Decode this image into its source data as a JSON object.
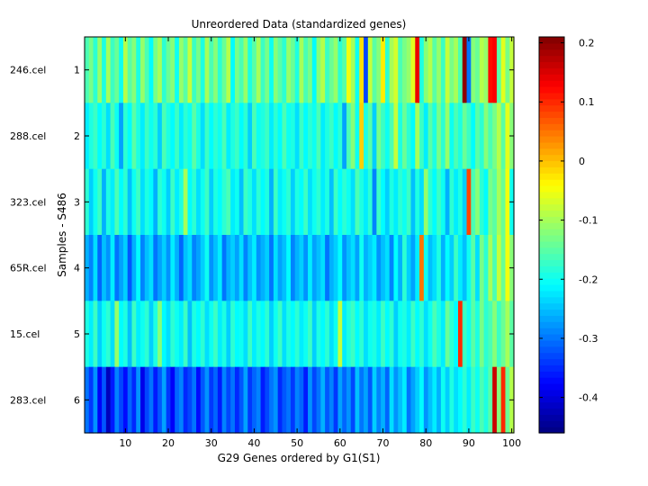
{
  "chart_data": {
    "type": "heatmap",
    "title": "Unreordered Data (standardized genes)",
    "xlabel": "G29 Genes ordered by G1(S1)",
    "ylabel": "Samples - S486",
    "x_ticks": [
      10,
      20,
      30,
      40,
      50,
      60,
      70,
      80,
      90,
      100
    ],
    "x_range": [
      0.5,
      100.5
    ],
    "rows": [
      {
        "index": "1",
        "sample": "246.cel"
      },
      {
        "index": "2",
        "sample": "288.cel"
      },
      {
        "index": "3",
        "sample": "323.cel"
      },
      {
        "index": "4",
        "sample": "65R.cel"
      },
      {
        "index": "5",
        "sample": "15.cel"
      },
      {
        "index": "6",
        "sample": "283.cel"
      }
    ],
    "n_columns": 100,
    "values": [
      [
        -0.16,
        -0.13,
        -0.18,
        -0.11,
        -0.19,
        -0.1,
        -0.17,
        -0.14,
        -0.2,
        -0.09,
        -0.15,
        -0.12,
        -0.19,
        -0.11,
        -0.16,
        -0.21,
        -0.13,
        -0.1,
        -0.18,
        -0.14,
        -0.12,
        -0.2,
        -0.11,
        -0.15,
        -0.08,
        -0.17,
        -0.13,
        -0.19,
        -0.1,
        -0.16,
        -0.12,
        -0.18,
        -0.14,
        -0.09,
        -0.21,
        -0.13,
        -0.16,
        -0.11,
        -0.19,
        -0.15,
        -0.1,
        -0.17,
        -0.13,
        -0.2,
        -0.12,
        -0.15,
        -0.18,
        -0.11,
        -0.14,
        -0.19,
        -0.1,
        -0.16,
        -0.13,
        -0.21,
        -0.12,
        -0.09,
        -0.17,
        -0.14,
        -0.11,
        -0.18,
        -0.15,
        -0.05,
        -0.1,
        -0.2,
        -0.02,
        -0.33,
        -0.08,
        -0.15,
        -0.12,
        -0.03,
        -0.18,
        -0.1,
        -0.07,
        -0.16,
        -0.13,
        -0.11,
        -0.06,
        0.14,
        -0.19,
        -0.12,
        -0.09,
        -0.15,
        -0.11,
        -0.17,
        -0.08,
        -0.13,
        -0.1,
        -0.16,
        0.2,
        -0.3,
        -0.12,
        -0.14,
        -0.09,
        -0.11,
        0.12,
        0.13,
        -0.15,
        -0.06,
        -0.13,
        -0.08
      ],
      [
        -0.22,
        -0.19,
        -0.17,
        -0.21,
        -0.18,
        -0.23,
        -0.16,
        -0.2,
        -0.27,
        -0.18,
        -0.21,
        -0.15,
        -0.19,
        -0.22,
        -0.17,
        -0.2,
        -0.18,
        -0.24,
        -0.16,
        -0.19,
        -0.21,
        -0.17,
        -0.22,
        -0.18,
        -0.2,
        -0.15,
        -0.19,
        -0.23,
        -0.17,
        -0.21,
        -0.18,
        -0.2,
        -0.16,
        -0.22,
        -0.19,
        -0.17,
        -0.21,
        -0.18,
        -0.24,
        -0.16,
        -0.2,
        -0.19,
        -0.17,
        -0.22,
        -0.18,
        -0.21,
        -0.16,
        -0.2,
        -0.19,
        -0.23,
        -0.17,
        -0.21,
        -0.18,
        -0.2,
        -0.16,
        -0.22,
        -0.19,
        -0.17,
        -0.21,
        -0.18,
        -0.27,
        -0.16,
        -0.12,
        -0.2,
        -0.01,
        -0.19,
        -0.15,
        -0.24,
        -0.13,
        -0.17,
        -0.2,
        -0.16,
        -0.08,
        -0.19,
        -0.14,
        -0.18,
        -0.21,
        -0.1,
        -0.17,
        -0.22,
        -0.15,
        -0.19,
        -0.13,
        -0.18,
        -0.11,
        -0.2,
        -0.16,
        -0.19,
        -0.14,
        -0.17,
        -0.21,
        -0.15,
        -0.18,
        -0.12,
        -0.16,
        -0.13,
        -0.09,
        -0.15,
        -0.06,
        -0.12
      ],
      [
        -0.18,
        -0.24,
        -0.2,
        -0.17,
        -0.26,
        -0.19,
        -0.22,
        -0.16,
        -0.21,
        -0.18,
        -0.25,
        -0.2,
        -0.17,
        -0.23,
        -0.19,
        -0.21,
        -0.26,
        -0.18,
        -0.2,
        -0.24,
        -0.17,
        -0.22,
        -0.19,
        -0.1,
        -0.21,
        -0.18,
        -0.23,
        -0.2,
        -0.17,
        -0.24,
        -0.19,
        -0.21,
        -0.18,
        -0.16,
        -0.22,
        -0.2,
        -0.25,
        -0.17,
        -0.19,
        -0.23,
        -0.18,
        -0.21,
        -0.19,
        -0.26,
        -0.17,
        -0.22,
        -0.2,
        -0.18,
        -0.24,
        -0.19,
        -0.21,
        -0.17,
        -0.23,
        -0.2,
        -0.18,
        -0.22,
        -0.19,
        -0.25,
        -0.17,
        -0.21,
        -0.18,
        -0.2,
        -0.23,
        -0.16,
        -0.19,
        -0.22,
        -0.18,
        -0.29,
        -0.17,
        -0.21,
        -0.24,
        -0.19,
        -0.22,
        -0.18,
        -0.2,
        -0.17,
        -0.25,
        -0.19,
        -0.23,
        -0.11,
        -0.18,
        -0.21,
        -0.17,
        -0.2,
        -0.26,
        -0.18,
        -0.22,
        -0.19,
        -0.24,
        0.08,
        -0.16,
        -0.12,
        -0.18,
        -0.21,
        -0.13,
        -0.15,
        -0.1,
        -0.14,
        -0.05,
        -0.2
      ],
      [
        -0.26,
        -0.29,
        -0.23,
        -0.31,
        -0.25,
        -0.28,
        -0.22,
        -0.3,
        -0.27,
        -0.24,
        -0.32,
        -0.26,
        -0.21,
        -0.29,
        -0.25,
        -0.23,
        -0.3,
        -0.27,
        -0.24,
        -0.28,
        -0.22,
        -0.26,
        -0.31,
        -0.25,
        -0.23,
        -0.29,
        -0.27,
        -0.24,
        -0.2,
        -0.28,
        -0.25,
        -0.22,
        -0.3,
        -0.26,
        -0.24,
        -0.27,
        -0.23,
        -0.29,
        -0.25,
        -0.22,
        -0.28,
        -0.26,
        -0.24,
        -0.3,
        -0.23,
        -0.27,
        -0.25,
        -0.21,
        -0.29,
        -0.26,
        -0.24,
        -0.28,
        -0.22,
        -0.27,
        -0.25,
        -0.23,
        -0.3,
        -0.26,
        -0.24,
        -0.21,
        -0.28,
        -0.25,
        -0.23,
        -0.27,
        -0.2,
        -0.26,
        -0.24,
        -0.22,
        -0.28,
        -0.25,
        -0.23,
        -0.29,
        -0.21,
        -0.26,
        -0.18,
        -0.24,
        -0.27,
        -0.22,
        0.05,
        -0.2,
        -0.25,
        -0.23,
        -0.19,
        -0.26,
        -0.21,
        -0.24,
        -0.17,
        -0.22,
        -0.25,
        -0.2,
        -0.15,
        -0.23,
        -0.13,
        -0.18,
        -0.1,
        -0.16,
        -0.08,
        -0.14,
        -0.05,
        -0.12
      ],
      [
        -0.19,
        -0.22,
        -0.17,
        -0.24,
        -0.2,
        -0.18,
        -0.23,
        -0.11,
        -0.21,
        -0.19,
        -0.25,
        -0.17,
        -0.22,
        -0.2,
        -0.18,
        -0.24,
        -0.19,
        -0.12,
        -0.21,
        -0.23,
        -0.18,
        -0.2,
        -0.22,
        -0.17,
        -0.25,
        -0.19,
        -0.21,
        -0.18,
        -0.23,
        -0.2,
        -0.17,
        -0.22,
        -0.19,
        -0.24,
        -0.18,
        -0.21,
        -0.2,
        -0.23,
        -0.17,
        -0.22,
        -0.19,
        -0.21,
        -0.18,
        -0.24,
        -0.2,
        -0.17,
        -0.23,
        -0.19,
        -0.21,
        -0.18,
        -0.22,
        -0.2,
        -0.17,
        -0.24,
        -0.19,
        -0.21,
        -0.18,
        -0.23,
        -0.2,
        -0.08,
        -0.22,
        -0.19,
        -0.17,
        -0.21,
        -0.18,
        -0.23,
        -0.2,
        -0.19,
        -0.22,
        -0.17,
        -0.21,
        -0.18,
        -0.24,
        -0.2,
        -0.19,
        -0.22,
        -0.17,
        -0.21,
        -0.18,
        -0.23,
        -0.2,
        -0.16,
        -0.19,
        -0.22,
        -0.14,
        -0.18,
        -0.21,
        0.1,
        -0.17,
        -0.2,
        -0.15,
        -0.19,
        -0.13,
        -0.18,
        -0.16,
        -0.12,
        -0.17,
        -0.14,
        -0.1,
        -0.15
      ],
      [
        -0.3,
        -0.34,
        -0.28,
        -0.38,
        -0.32,
        -0.42,
        -0.36,
        -0.29,
        -0.33,
        -0.37,
        -0.31,
        -0.35,
        -0.28,
        -0.39,
        -0.33,
        -0.3,
        -0.36,
        -0.32,
        -0.27,
        -0.34,
        -0.38,
        -0.31,
        -0.29,
        -0.35,
        -0.33,
        -0.3,
        -0.37,
        -0.32,
        -0.28,
        -0.34,
        -0.31,
        -0.36,
        -0.29,
        -0.33,
        -0.3,
        -0.35,
        -0.32,
        -0.27,
        -0.34,
        -0.31,
        -0.29,
        -0.36,
        -0.33,
        -0.3,
        -0.28,
        -0.35,
        -0.32,
        -0.3,
        -0.34,
        -0.29,
        -0.31,
        -0.36,
        -0.28,
        -0.33,
        -0.3,
        -0.26,
        -0.32,
        -0.29,
        -0.34,
        -0.27,
        -0.31,
        -0.28,
        -0.33,
        -0.25,
        -0.3,
        -0.27,
        -0.32,
        -0.24,
        -0.29,
        -0.26,
        -0.31,
        -0.23,
        -0.28,
        -0.25,
        -0.22,
        -0.3,
        -0.27,
        -0.24,
        -0.21,
        -0.28,
        -0.25,
        -0.22,
        -0.26,
        -0.2,
        -0.24,
        -0.19,
        -0.23,
        -0.21,
        -0.18,
        -0.22,
        -0.17,
        -0.2,
        -0.16,
        -0.19,
        -0.15,
        0.16,
        -0.12,
        0.1,
        -0.14,
        -0.09
      ]
    ],
    "colorbar": {
      "range": [
        -0.46,
        0.21
      ],
      "ticks": [
        "-0.4",
        "-0.3",
        "-0.2",
        "-0.1",
        "0",
        "0.1",
        "0.2"
      ],
      "colormap": "jet"
    }
  }
}
